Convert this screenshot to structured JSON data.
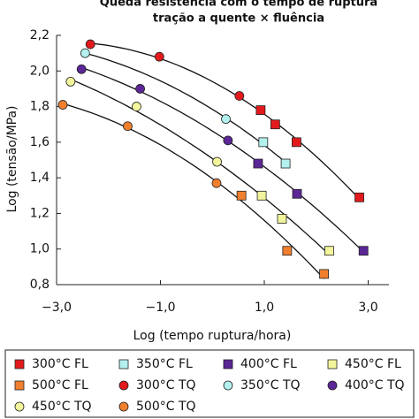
{
  "chart_data": {
    "type": "scatter",
    "title": [
      "Queda resistência com o tempo de ruptura",
      "tração a quente × fluência"
    ],
    "x_label": "Log (tempo ruptura/hora)",
    "y_label": "Log (tensão/MPa)",
    "xlim": [
      -3.0,
      3.4
    ],
    "ylim": [
      0.8,
      2.2
    ],
    "xticks": [
      {
        "value": -3,
        "label": "−3,0"
      },
      {
        "value": -1,
        "label": "−1,0"
      },
      {
        "value": 1,
        "label": "1,0"
      },
      {
        "value": 3,
        "label": "3,0"
      }
    ],
    "yticks": [
      {
        "value": 0.8,
        "label": "0,8"
      },
      {
        "value": 1.0,
        "label": "1,0"
      },
      {
        "value": 1.2,
        "label": "1,2"
      },
      {
        "value": 1.4,
        "label": "1,4"
      },
      {
        "value": 1.6,
        "label": "1,6"
      },
      {
        "value": 1.8,
        "label": "1,8"
      },
      {
        "value": 2.0,
        "label": "2,0"
      },
      {
        "value": 2.2,
        "label": "2,2"
      }
    ],
    "series": [
      {
        "name": "300°C FL",
        "marker": "square",
        "color": "#e31a1c",
        "x": [
          0.93,
          1.21,
          1.62,
          2.83
        ],
        "values": [
          1.78,
          1.7,
          1.6,
          1.29
        ]
      },
      {
        "name": "350°C FL",
        "marker": "square",
        "color": "#b3f0ee",
        "x": [
          0.98,
          1.41
        ],
        "values": [
          1.6,
          1.48
        ]
      },
      {
        "name": "400°C FL",
        "marker": "square",
        "color": "#5b2696",
        "x": [
          0.88,
          1.63,
          2.91
        ],
        "values": [
          1.48,
          1.31,
          0.99
        ]
      },
      {
        "name": "450°C FL",
        "marker": "square",
        "color": "#f3f59c",
        "x": [
          0.95,
          1.34,
          2.25
        ],
        "values": [
          1.3,
          1.17,
          0.99
        ]
      },
      {
        "name": "500°C FL",
        "marker": "square",
        "color": "#f07f2e",
        "x": [
          0.56,
          1.44,
          2.15
        ],
        "values": [
          1.3,
          0.99,
          0.86
        ]
      },
      {
        "name": "300°C TQ",
        "marker": "circle",
        "color": "#e31a1c",
        "x": [
          -2.35,
          -1.02,
          0.52
        ],
        "values": [
          2.15,
          2.08,
          1.86
        ]
      },
      {
        "name": "350°C TQ",
        "marker": "circle",
        "color": "#b3f0ee",
        "x": [
          -2.45,
          0.26
        ],
        "values": [
          2.1,
          1.73
        ]
      },
      {
        "name": "400°C TQ",
        "marker": "circle",
        "color": "#5b2696",
        "x": [
          -2.52,
          -1.39,
          0.3
        ],
        "values": [
          2.01,
          1.9,
          1.61
        ]
      },
      {
        "name": "450°C TQ",
        "marker": "circle",
        "color": "#f3f59c",
        "x": [
          -2.73,
          -1.46,
          0.09
        ],
        "values": [
          1.94,
          1.8,
          1.49
        ]
      },
      {
        "name": "500°C TQ",
        "marker": "circle",
        "color": "#f07f2e",
        "x": [
          -2.88,
          -1.63,
          0.08
        ],
        "values": [
          1.81,
          1.69,
          1.37
        ]
      }
    ]
  }
}
